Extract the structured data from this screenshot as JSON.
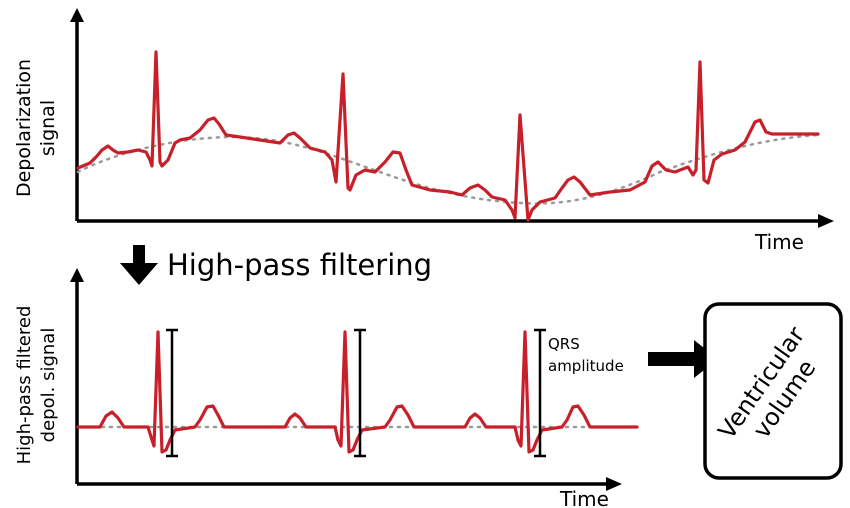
{
  "top_panel": {
    "ylabel_line1": "Depolarization",
    "ylabel_line2": "signal",
    "xlabel": "Time"
  },
  "filter_step": {
    "label": "High-pass filtering",
    "arrow_icon": "down-arrow-icon"
  },
  "bottom_panel": {
    "ylabel_line1": "High-pass filtered",
    "ylabel_line2": "depol. signal",
    "xlabel": "Time",
    "qrs_label_line1": "QRS",
    "qrs_label_line2": "amplitude"
  },
  "output_box": {
    "label_line1": "Ventricular",
    "label_line2": "volume",
    "arrow_icon": "right-arrow-icon"
  },
  "colors": {
    "signal": "#c8202a",
    "baseline": "#9a9a9a",
    "axis": "#000000"
  }
}
